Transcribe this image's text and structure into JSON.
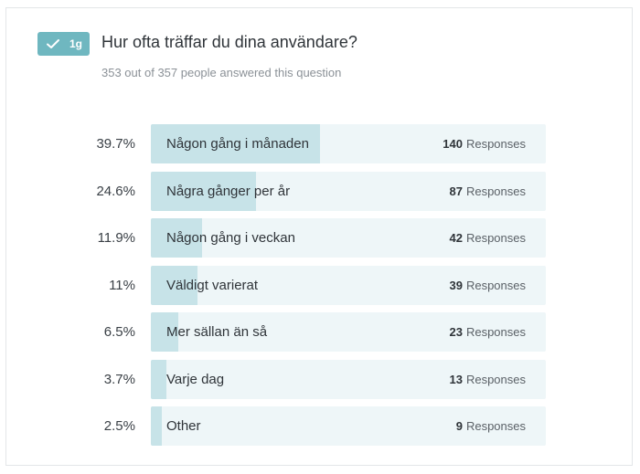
{
  "question": {
    "badge_id": "1g",
    "title": "Hur ofta träffar du dina användare?",
    "answered_text": "353 out of 357 people answered this question"
  },
  "responses_word": "Responses",
  "answers": [
    {
      "percent_label": "39.7%",
      "label": "Någon gång i månaden",
      "count": "140",
      "fraction": 0.397
    },
    {
      "percent_label": "24.6%",
      "label": "Några gånger per år",
      "count": "87",
      "fraction": 0.246
    },
    {
      "percent_label": "11.9%",
      "label": "Någon gång i veckan",
      "count": "42",
      "fraction": 0.119
    },
    {
      "percent_label": "11%",
      "label": "Väldigt varierat",
      "count": "39",
      "fraction": 0.11
    },
    {
      "percent_label": "6.5%",
      "label": "Mer sällan än så",
      "count": "23",
      "fraction": 0.065
    },
    {
      "percent_label": "3.7%",
      "label": "Varje dag",
      "count": "13",
      "fraction": 0.037
    },
    {
      "percent_label": "2.5%",
      "label": "Other",
      "count": "9",
      "fraction": 0.025
    }
  ],
  "colors": {
    "badge": "#6fb7c0",
    "bar_track": "#eef6f8",
    "bar_fill": "#c7e3e8"
  }
}
